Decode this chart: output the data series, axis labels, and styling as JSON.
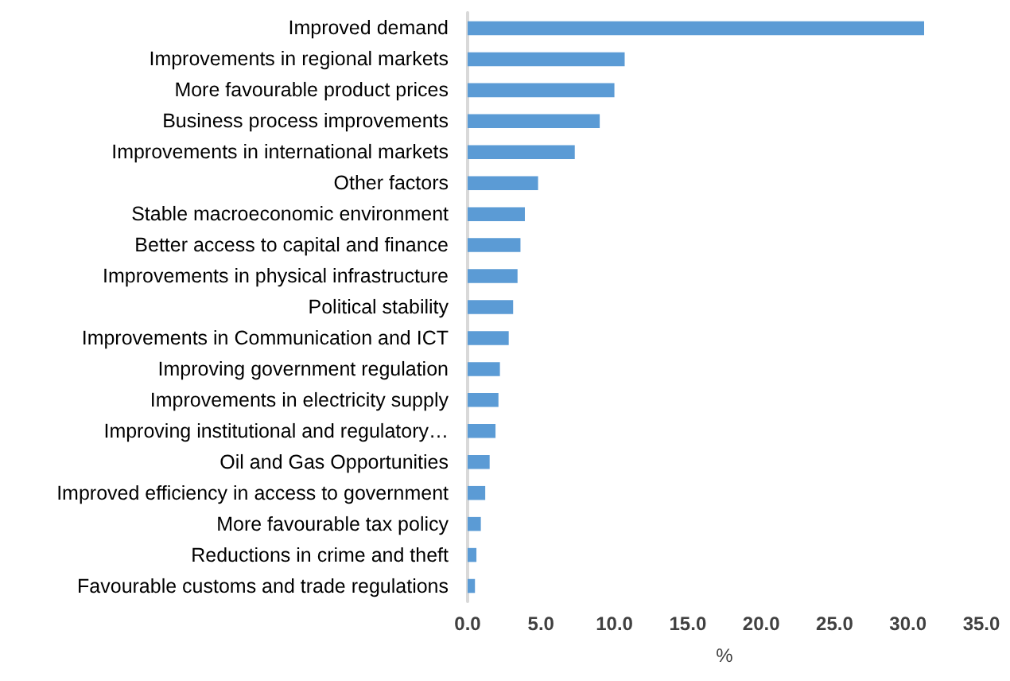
{
  "chart_data": {
    "type": "bar",
    "orientation": "horizontal",
    "xlabel": "%",
    "categories": [
      "Improved demand",
      "Improvements in regional markets",
      "More favourable product prices",
      "Business process improvements",
      "Improvements in international markets",
      "Other factors",
      "Stable macroeconomic environment",
      "Better access to capital and finance",
      "Improvements in physical infrastructure",
      "Political stability",
      "Improvements in Communication and ICT",
      "Improving government regulation",
      "Improvements in electricity supply",
      "Improving institutional and regulatory…",
      "Oil and Gas Opportunities",
      "Improved efficiency in access to government",
      "More favourable tax policy",
      "Reductions in crime and theft",
      "Favourable customs and trade regulations"
    ],
    "values": [
      31.1,
      10.7,
      10.0,
      9.0,
      7.3,
      4.8,
      3.9,
      3.6,
      3.4,
      3.1,
      2.8,
      2.2,
      2.1,
      1.9,
      1.5,
      1.2,
      0.9,
      0.6,
      0.5
    ],
    "color": "#5b9bd5",
    "xlim": [
      0,
      35
    ],
    "xticks": [
      {
        "value": 0,
        "label": "0.0"
      },
      {
        "value": 5,
        "label": "5.0"
      },
      {
        "value": 10,
        "label": "10.0"
      },
      {
        "value": 15,
        "label": "15.0"
      },
      {
        "value": 20,
        "label": "20.0"
      },
      {
        "value": 25,
        "label": "25.0"
      },
      {
        "value": 30,
        "label": "30.0"
      },
      {
        "value": 35,
        "label": "35.0"
      }
    ],
    "grid": false
  }
}
